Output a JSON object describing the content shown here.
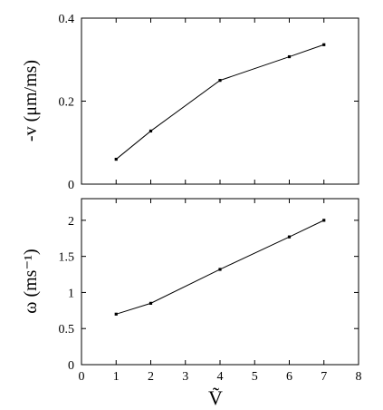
{
  "chart_data": [
    {
      "type": "line",
      "title": "",
      "ylabel": "-v  (μm/ms)",
      "xlabel": "",
      "xlim": [
        0,
        8
      ],
      "ylim": [
        0,
        0.4
      ],
      "yticks": [
        "0",
        "0.2",
        "0.4"
      ],
      "show_xtick_labels": false,
      "grid": false,
      "series": [
        {
          "x": [
            1,
            2,
            4,
            6,
            7
          ],
          "y": [
            0.06,
            0.128,
            0.25,
            0.307,
            0.336
          ]
        }
      ]
    },
    {
      "type": "line",
      "title": "",
      "ylabel": "ω  (ms⁻¹)",
      "xlabel": "Ṽ",
      "xlim": [
        0,
        8
      ],
      "ylim": [
        0,
        2.3
      ],
      "xticks": [
        "0",
        "1",
        "2",
        "3",
        "4",
        "5",
        "6",
        "7",
        "8"
      ],
      "yticks": [
        "0",
        "0.5",
        "1",
        "1.5",
        "2"
      ],
      "show_xtick_labels": true,
      "grid": false,
      "series": [
        {
          "x": [
            1,
            2,
            4,
            6,
            7
          ],
          "y": [
            0.7,
            0.85,
            1.32,
            1.77,
            2.0
          ]
        }
      ]
    }
  ]
}
